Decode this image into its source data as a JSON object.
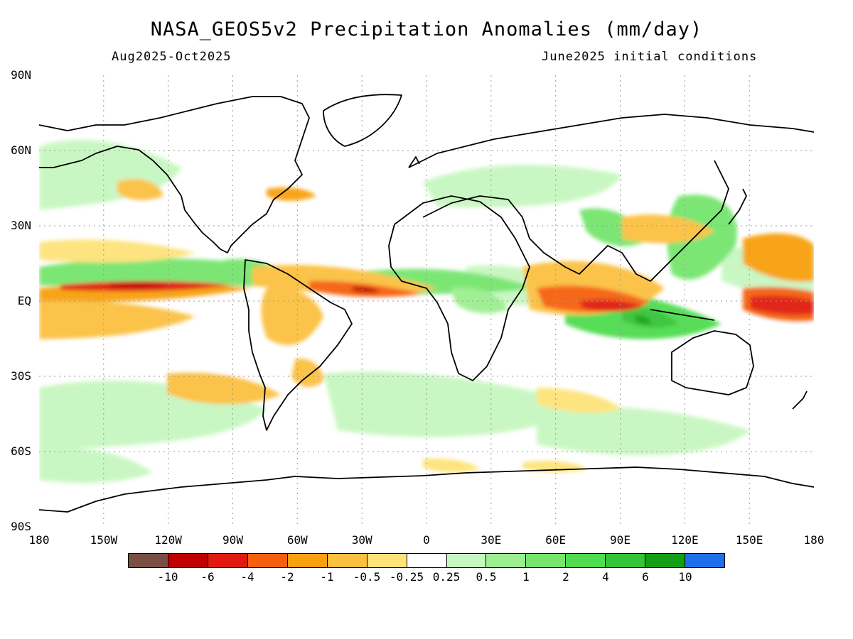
{
  "title": "NASA_GEOS5v2 Precipitation Anomalies (mm/day)",
  "period": "Aug2025-Oct2025",
  "initial_conditions": "June2025 initial conditions",
  "lat_labels": [
    "90N",
    "60N",
    "30N",
    "EQ",
    "30S",
    "60S",
    "90S"
  ],
  "lon_labels": [
    "180",
    "150W",
    "120W",
    "90W",
    "60W",
    "30W",
    "0",
    "30E",
    "60E",
    "90E",
    "120E",
    "150E",
    "180"
  ],
  "colorbar": {
    "colors": [
      "#7a4f43",
      "#c00000",
      "#e01a10",
      "#f56010",
      "#f8a010",
      "#fbc040",
      "#fde37a",
      "#ffffff",
      "#c7f7c0",
      "#9cef90",
      "#76e56e",
      "#4fdc4f",
      "#34c437",
      "#13a015",
      "#1f6fea"
    ],
    "labels": [
      "-10",
      "-6",
      "-4",
      "-2",
      "-1",
      "-0.5",
      "-0.25",
      "0.25",
      "0.5",
      "1",
      "2",
      "4",
      "6",
      "10"
    ]
  }
}
